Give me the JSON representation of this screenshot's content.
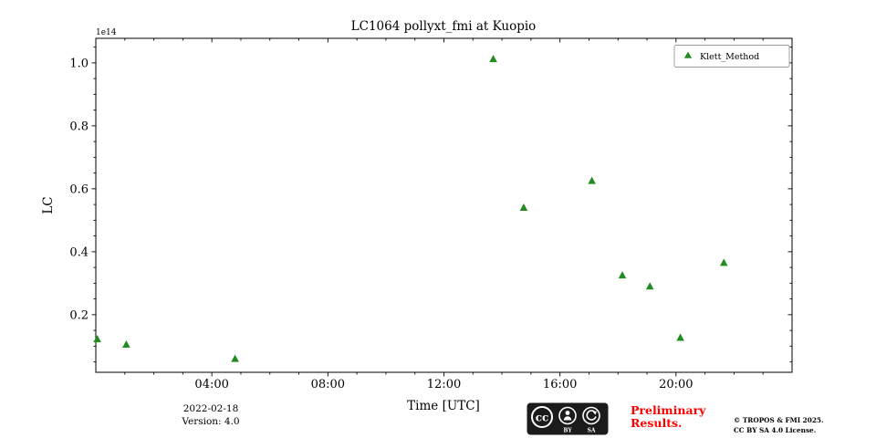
{
  "chart_data": {
    "type": "scatter",
    "title": "LC1064 pollyxt_fmi at Kuopio",
    "xlabel": "Time [UTC]",
    "ylabel": "LC",
    "y_offset_label": "1e14",
    "xlim_hours": [
      0,
      24
    ],
    "ylim": [
      0.017,
      1.078
    ],
    "grid": false,
    "x_major_ticks": [
      {
        "hour": 4,
        "label": "04:00"
      },
      {
        "hour": 8,
        "label": "08:00"
      },
      {
        "hour": 12,
        "label": "12:00"
      },
      {
        "hour": 16,
        "label": "16:00"
      },
      {
        "hour": 20,
        "label": "20:00"
      }
    ],
    "x_minor_step_hours": 1,
    "y_major_ticks": [
      {
        "value": 0.2,
        "label": "0.2"
      },
      {
        "value": 0.4,
        "label": "0.4"
      },
      {
        "value": 0.6,
        "label": "0.6"
      },
      {
        "value": 0.8,
        "label": "0.8"
      },
      {
        "value": 1.0,
        "label": "1.0"
      }
    ],
    "y_minor_step": 0.05,
    "legend": {
      "position": "upper right",
      "entries": [
        "Klett_Method"
      ]
    },
    "series": [
      {
        "name": "Klett_Method",
        "marker": "triangle-up",
        "color": "#228B22",
        "points_units": "LC x 1e14 vs hour UTC",
        "points": [
          {
            "hour": 0.05,
            "lc": 0.122
          },
          {
            "hour": 1.05,
            "lc": 0.105
          },
          {
            "hour": 4.8,
            "lc": 0.06
          },
          {
            "hour": 13.7,
            "lc": 1.012
          },
          {
            "hour": 14.75,
            "lc": 0.54
          },
          {
            "hour": 17.1,
            "lc": 0.625
          },
          {
            "hour": 18.15,
            "lc": 0.325
          },
          {
            "hour": 19.1,
            "lc": 0.29
          },
          {
            "hour": 20.15,
            "lc": 0.127
          },
          {
            "hour": 21.65,
            "lc": 0.365
          }
        ]
      }
    ]
  },
  "footer": {
    "date": "2022-02-18",
    "version": "Version: 4.0",
    "preliminary_line1": "Preliminary",
    "preliminary_line2": "Results.",
    "preliminary_color": "#ff0000",
    "copyright_line1": "© TROPOS & FMI 2025.",
    "copyright_line2": "CC BY SA 4.0 License.",
    "cc_badge": {
      "cc_text": "cc",
      "label_by": "BY",
      "label_sa": "SA"
    }
  }
}
